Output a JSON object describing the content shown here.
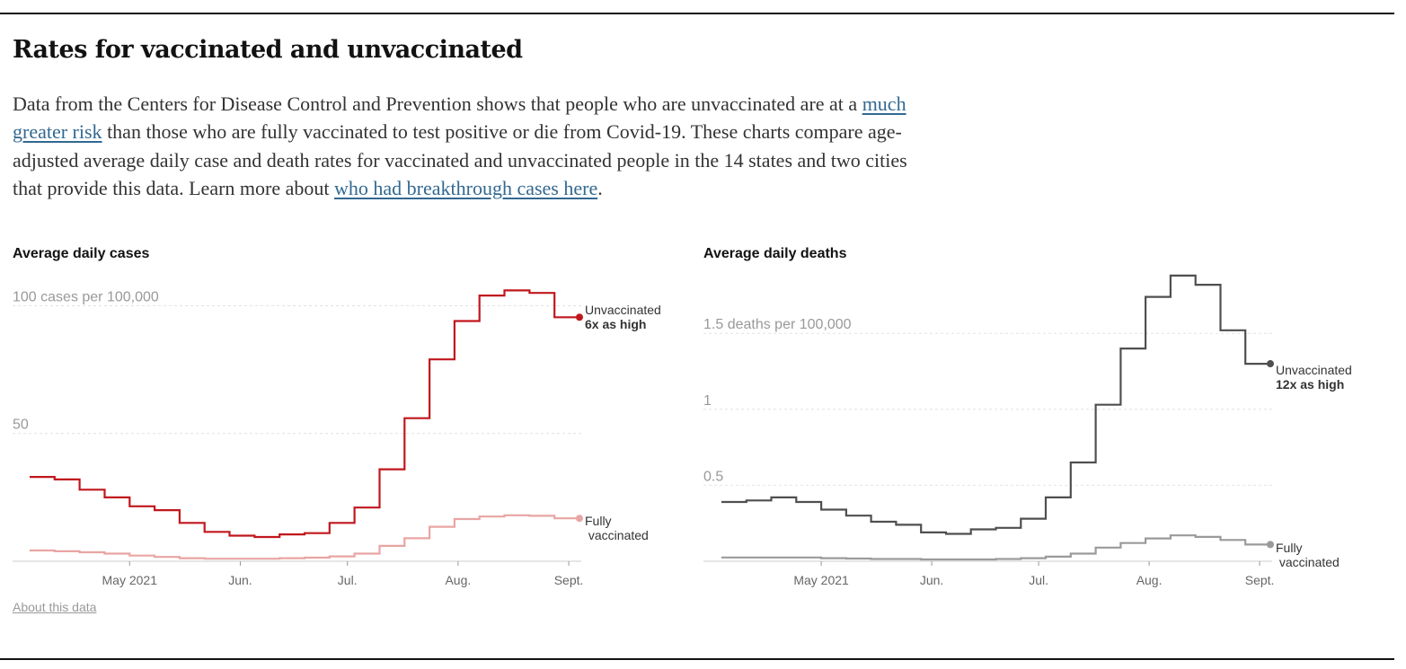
{
  "header": {
    "title": "Rates for vaccinated and unvaccinated"
  },
  "intro": {
    "text_1": "Data from the Centers for Disease Control and Prevention shows that people who are unvaccinated are at a ",
    "link_1": "much greater risk",
    "text_2": " than those who are fully vaccinated to test positive or die from Covid-19. These charts compare age-adjusted average daily case and death rates for vaccinated and unvaccinated people in the 14 states and two cities that provide this data. Learn more about ",
    "link_2": "who had breakthrough cases here",
    "text_3": "."
  },
  "footer": {
    "about_link": "About this data"
  },
  "colors": {
    "cases_unvaccinated": "#c0171d",
    "cases_vaccinated": "#e8a5a3",
    "deaths_unvaccinated": "#4f4f4f",
    "deaths_vaccinated": "#9a9a9a",
    "gridline": "#e2e2e2",
    "axis": "#cccccc"
  },
  "chart_data": [
    {
      "type": "line",
      "step": true,
      "title": "Average daily cases",
      "y_ticks": [
        {
          "value": 50,
          "label": "50"
        },
        {
          "value": 100,
          "label": "100 cases per 100,000"
        }
      ],
      "ylim": [
        0,
        110
      ],
      "x_axis": {
        "start": "2021-04-03",
        "end": "2021-09-04",
        "ticks": [
          {
            "date": "2021-05-01",
            "label": "May 2021"
          },
          {
            "date": "2021-06-01",
            "label": "Jun."
          },
          {
            "date": "2021-07-01",
            "label": "Jul."
          },
          {
            "date": "2021-08-01",
            "label": "Aug."
          },
          {
            "date": "2021-09-01",
            "label": "Sept."
          }
        ]
      },
      "x": [
        "2021-04-03",
        "2021-04-10",
        "2021-04-17",
        "2021-04-24",
        "2021-05-01",
        "2021-05-08",
        "2021-05-15",
        "2021-05-22",
        "2021-05-29",
        "2021-06-05",
        "2021-06-12",
        "2021-06-19",
        "2021-06-26",
        "2021-07-03",
        "2021-07-10",
        "2021-07-17",
        "2021-07-24",
        "2021-07-31",
        "2021-08-07",
        "2021-08-14",
        "2021-08-21",
        "2021-08-28",
        "2021-09-04"
      ],
      "series": [
        {
          "name": "Unvaccinated",
          "annotation": "6x as high",
          "values": [
            33,
            32,
            28,
            25,
            21.5,
            20,
            15,
            11.5,
            10,
            9.5,
            10.5,
            11,
            15,
            21,
            36,
            56,
            79,
            94,
            104,
            106,
            105,
            95.5,
            95.5
          ]
        },
        {
          "name": "Fully vaccinated",
          "values": [
            4.2,
            3.9,
            3.5,
            3.0,
            2.2,
            1.7,
            1.2,
            1.0,
            1.0,
            1.0,
            1.2,
            1.4,
            1.9,
            3.0,
            6.0,
            9.0,
            13.5,
            16.5,
            17.5,
            18.0,
            17.8,
            16.8,
            16.8
          ]
        }
      ]
    },
    {
      "type": "line",
      "step": true,
      "title": "Average daily deaths",
      "y_ticks": [
        {
          "value": 0.5,
          "label": "0.5"
        },
        {
          "value": 1,
          "label": "1"
        },
        {
          "value": 1.5,
          "label": "1.5 deaths per 100,000"
        }
      ],
      "ylim": [
        0,
        1.85
      ],
      "x_axis": {
        "start": "2021-04-03",
        "end": "2021-09-04",
        "ticks": [
          {
            "date": "2021-05-01",
            "label": "May 2021"
          },
          {
            "date": "2021-06-01",
            "label": "Jun."
          },
          {
            "date": "2021-07-01",
            "label": "Jul."
          },
          {
            "date": "2021-08-01",
            "label": "Aug."
          },
          {
            "date": "2021-09-01",
            "label": "Sept."
          }
        ]
      },
      "x": [
        "2021-04-03",
        "2021-04-10",
        "2021-04-17",
        "2021-04-24",
        "2021-05-01",
        "2021-05-08",
        "2021-05-15",
        "2021-05-22",
        "2021-05-29",
        "2021-06-05",
        "2021-06-12",
        "2021-06-19",
        "2021-06-26",
        "2021-07-03",
        "2021-07-10",
        "2021-07-17",
        "2021-07-24",
        "2021-07-31",
        "2021-08-07",
        "2021-08-14",
        "2021-08-21",
        "2021-08-28",
        "2021-09-04"
      ],
      "series": [
        {
          "name": "Unvaccinated",
          "annotation": "12x as high",
          "values": [
            0.39,
            0.4,
            0.42,
            0.39,
            0.34,
            0.3,
            0.26,
            0.24,
            0.19,
            0.18,
            0.21,
            0.22,
            0.28,
            0.42,
            0.65,
            1.03,
            1.4,
            1.74,
            1.88,
            1.82,
            1.52,
            1.3,
            1.3
          ]
        },
        {
          "name": "Fully vaccinated",
          "values": [
            0.025,
            0.025,
            0.025,
            0.025,
            0.02,
            0.018,
            0.015,
            0.015,
            0.012,
            0.012,
            0.012,
            0.015,
            0.02,
            0.03,
            0.05,
            0.09,
            0.12,
            0.15,
            0.17,
            0.16,
            0.14,
            0.11,
            0.11
          ]
        }
      ]
    }
  ]
}
